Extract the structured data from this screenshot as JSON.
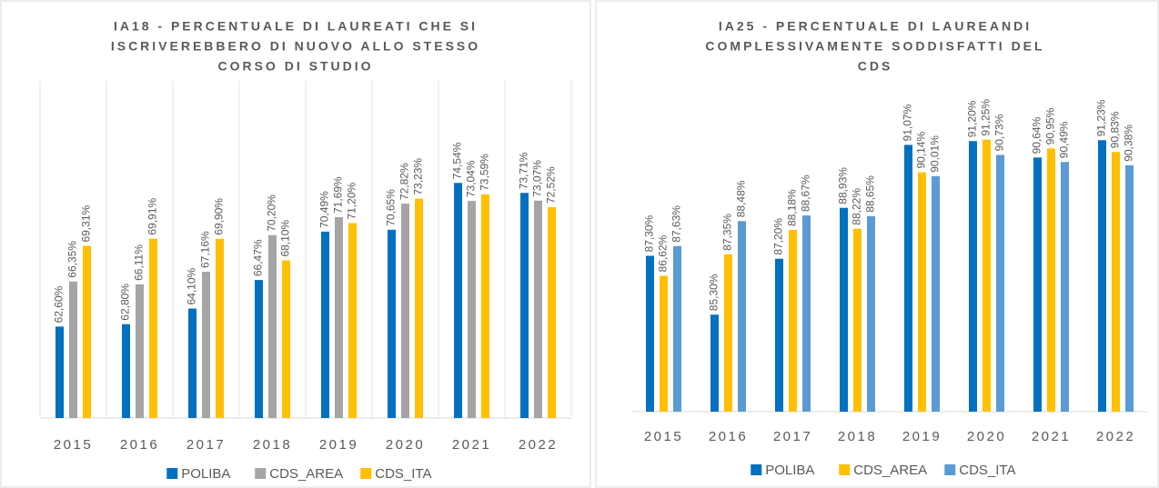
{
  "chart_data": [
    {
      "type": "bar",
      "title": [
        "IA18 - PERCENTUALE DI LAUREATI CHE SI",
        "ISCRIVEREBBERO DI NUOVO ALLO STESSO",
        "CORSO DI STUDIO"
      ],
      "categories": [
        "2015",
        "2016",
        "2017",
        "2018",
        "2019",
        "2020",
        "2021",
        "2022"
      ],
      "ylim": [
        55,
        80
      ],
      "category_grid": true,
      "legend": "bottom",
      "series": [
        {
          "name": "POLIBA",
          "color": "#0070c0",
          "values": [
            62.6,
            62.8,
            64.1,
            66.47,
            70.49,
            70.65,
            74.54,
            73.71
          ],
          "value_labels": [
            "62,60%",
            "62,80%",
            "64,10%",
            "66,47%",
            "70,49%",
            "70,65%",
            "74,54%",
            "73,71%"
          ]
        },
        {
          "name": "CDS_AREA",
          "color": "#a5a5a5",
          "values": [
            66.35,
            66.11,
            67.16,
            70.2,
            71.69,
            72.82,
            73.04,
            73.07
          ],
          "value_labels": [
            "66,35%",
            "66,11%",
            "67,16%",
            "70,20%",
            "71,69%",
            "72,82%",
            "73,04%",
            "73,07%"
          ]
        },
        {
          "name": "CDS_ITA",
          "color": "#ffc000",
          "values": [
            69.31,
            69.91,
            69.9,
            68.1,
            71.2,
            73.23,
            73.59,
            72.52
          ],
          "value_labels": [
            "69,31%",
            "69,91%",
            "69,90%",
            "68,10%",
            "71,20%",
            "73,23%",
            "73,59%",
            "72,52%"
          ]
        }
      ]
    },
    {
      "type": "bar",
      "title": [
        "IA25 - PERCENTUALE DI LAUREANDI",
        "COMPLESSIVAMENTE SODDISFATTI DEL",
        "CDS"
      ],
      "categories": [
        "2015",
        "2016",
        "2017",
        "2018",
        "2019",
        "2020",
        "2021",
        "2022"
      ],
      "ylim": [
        82,
        93
      ],
      "category_grid": false,
      "legend": "bottom",
      "series": [
        {
          "name": "POLIBA",
          "color": "#0070c0",
          "values": [
            87.3,
            85.3,
            87.2,
            88.93,
            91.07,
            91.2,
            90.64,
            91.23
          ],
          "value_labels": [
            "87,30%",
            "85,30%",
            "87,20%",
            "88,93%",
            "91,07%",
            "91,20%",
            "90,64%",
            "91,23%"
          ]
        },
        {
          "name": "CDS_AREA",
          "color": "#ffc000",
          "values": [
            86.62,
            87.35,
            88.18,
            88.22,
            90.14,
            91.25,
            90.95,
            90.83
          ],
          "value_labels": [
            "86,62%",
            "87,35%",
            "88,18%",
            "88,22%",
            "90,14%",
            "91,25%",
            "90,95%",
            "90,83%"
          ]
        },
        {
          "name": "CDS_ITA",
          "color": "#5b9bd5",
          "values": [
            87.63,
            88.48,
            88.67,
            88.65,
            90.01,
            90.73,
            90.49,
            90.38
          ],
          "value_labels": [
            "87,63%",
            "88,48%",
            "88,67%",
            "88,65%",
            "90,01%",
            "90,73%",
            "90,49%",
            "90,38%"
          ]
        }
      ]
    }
  ]
}
